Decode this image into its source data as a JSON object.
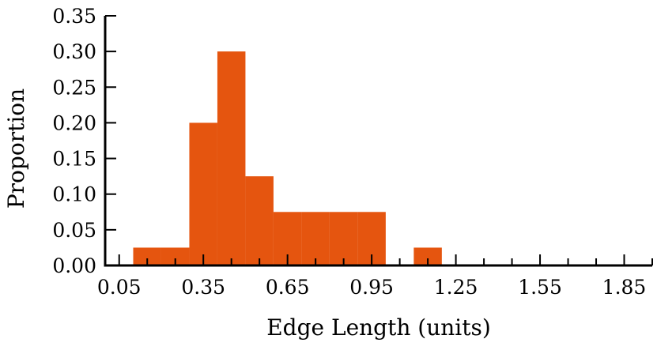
{
  "chart_data": {
    "type": "bar",
    "title": "",
    "xlabel": "Edge Length (units)",
    "ylabel": "Proportion",
    "bar_color": "#E5550F",
    "xlim": [
      0.0,
      1.95
    ],
    "ylim": [
      0.0,
      0.35
    ],
    "bin_width": 0.1,
    "grid": false,
    "x_ticks": [
      0.05,
      0.35,
      0.65,
      0.95,
      1.25,
      1.55,
      1.85
    ],
    "x_tick_labels": [
      "0.05",
      "0.35",
      "0.65",
      "0.95",
      "1.25",
      "1.55",
      "1.85"
    ],
    "y_ticks": [
      0.0,
      0.05,
      0.1,
      0.15,
      0.2,
      0.25,
      0.3,
      0.35
    ],
    "y_tick_labels": [
      "0.00",
      "0.05",
      "0.10",
      "0.15",
      "0.20",
      "0.25",
      "0.30",
      "0.35"
    ],
    "bins": [
      {
        "x0": 0.1,
        "x1": 0.2,
        "value": 0.025
      },
      {
        "x0": 0.2,
        "x1": 0.3,
        "value": 0.025
      },
      {
        "x0": 0.3,
        "x1": 0.4,
        "value": 0.2
      },
      {
        "x0": 0.4,
        "x1": 0.5,
        "value": 0.3
      },
      {
        "x0": 0.5,
        "x1": 0.6,
        "value": 0.125
      },
      {
        "x0": 0.6,
        "x1": 0.7,
        "value": 0.075
      },
      {
        "x0": 0.7,
        "x1": 0.8,
        "value": 0.075
      },
      {
        "x0": 0.8,
        "x1": 0.9,
        "value": 0.075
      },
      {
        "x0": 0.9,
        "x1": 1.0,
        "value": 0.075
      },
      {
        "x0": 1.1,
        "x1": 1.2,
        "value": 0.025
      }
    ]
  }
}
